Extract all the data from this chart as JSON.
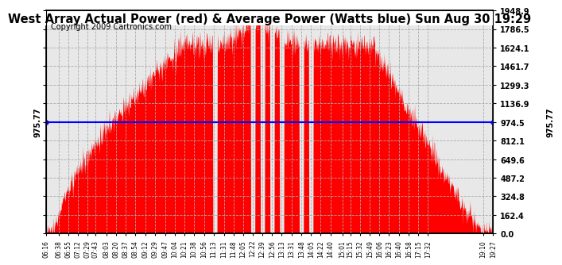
{
  "title": "West Array Actual Power (red) & Average Power (Watts blue) Sun Aug 30 19:29",
  "copyright": "Copyright 2009 Cartronics.com",
  "average_power": 975.77,
  "y_max": 1948.9,
  "y_ticks": [
    0.0,
    162.4,
    324.8,
    487.2,
    649.6,
    812.1,
    974.5,
    1136.9,
    1299.3,
    1461.7,
    1624.1,
    1786.5,
    1948.9
  ],
  "y_tick_labels_right": [
    "0.0",
    "162.4",
    "324.8",
    "487.2",
    "649.6",
    "812.1",
    "974.5",
    "1136.9",
    "1299.3",
    "1461.7",
    "1624.1",
    "1786.5",
    "1948.9"
  ],
  "x_tick_labels": [
    "06:16",
    "06:38",
    "06:55",
    "07:12",
    "07:29",
    "07:43",
    "08:03",
    "08:20",
    "08:37",
    "08:54",
    "09:12",
    "09:29",
    "09:47",
    "10:04",
    "10:21",
    "10:38",
    "10:56",
    "11:13",
    "11:31",
    "11:48",
    "12:05",
    "12:22",
    "12:39",
    "12:56",
    "13:13",
    "13:31",
    "13:48",
    "14:05",
    "14:22",
    "14:40",
    "15:01",
    "15:15",
    "15:32",
    "15:49",
    "16:06",
    "16:23",
    "16:40",
    "16:58",
    "17:15",
    "17:32",
    "19:10",
    "19:27"
  ],
  "bg_color": "#ffffff",
  "plot_bg_color": "#e8e8e8",
  "fill_color": "#ff0000",
  "avg_line_color": "#0000ff",
  "grid_color": "#aaaaaa",
  "title_color": "#000000",
  "border_color": "#000000",
  "title_fontsize": 10.5,
  "copyright_fontsize": 7,
  "tick_fontsize": 7,
  "x_tick_fontsize": 5.5
}
